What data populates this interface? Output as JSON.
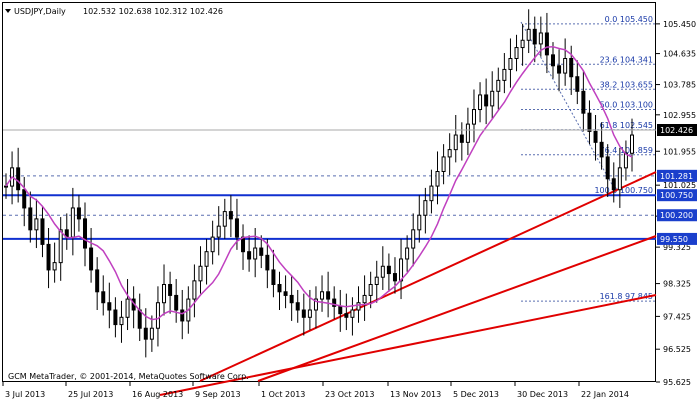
{
  "header": {
    "symbol_label": "USDJPY,Daily",
    "ohlc": "102.532 102.638 102.312 102.426"
  },
  "footer": {
    "copyright": "GCM MetaTrader, © 2001-2014, MetaQuotes Software Corp."
  },
  "colors": {
    "candle": "#000000",
    "ma": "#c040c0",
    "trendline": "#e00000",
    "hline": "#1030d0",
    "fib": "#5a6fb0",
    "label_bg": "#1a3fcc",
    "price_bg": "#000000"
  },
  "chart_data": {
    "type": "candlestick",
    "title": "USDJPY,Daily",
    "ylim": [
      95.625,
      106.05
    ],
    "x_tick_labels": [
      "3 Jul 2013",
      "25 Jul 2013",
      "16 Aug 2013",
      "9 Sep 2013",
      "1 Oct 2013",
      "23 Oct 2013",
      "13 Nov 2013",
      "5 Dec 2013",
      "30 Dec 2013",
      "22 Jan 2014"
    ],
    "y_tick_labels": [
      "105.450",
      "104.635",
      "103.785",
      "102.955",
      "101.955",
      "101.025",
      "100.175",
      "99.325",
      "98.325",
      "97.425",
      "96.525",
      "95.625"
    ],
    "current_price": "102.426",
    "horizontal_lines": [
      {
        "label": "101.281",
        "value": 101.281
      },
      {
        "label": "100.750",
        "value": 100.75
      },
      {
        "label": "100.200",
        "value": 100.2
      },
      {
        "label": "99.550",
        "value": 99.55
      }
    ],
    "fib_levels": [
      {
        "label": "0.0 105.450",
        "value": 105.45
      },
      {
        "label": "23.6 104.341",
        "value": 104.341
      },
      {
        "label": "38.2 103.655",
        "value": 103.655
      },
      {
        "label": "50.0 103.100",
        "value": 103.1
      },
      {
        "label": "61.8 102.545",
        "value": 102.545
      },
      {
        "label": "76.4 101.859",
        "value": 101.859
      },
      {
        "label": "100.0 100.750",
        "value": 100.75
      },
      {
        "label": "161.8 97.845",
        "value": 97.845
      }
    ],
    "candles_close_approx": [
      101.0,
      101.5,
      100.9,
      100.4,
      99.8,
      100.1,
      99.4,
      98.7,
      98.9,
      99.8,
      99.6,
      100.4,
      100.1,
      99.3,
      98.7,
      98.1,
      97.8,
      97.6,
      97.2,
      97.4,
      97.9,
      97.6,
      97.1,
      96.8,
      97.1,
      97.8,
      98.3,
      98.0,
      97.6,
      97.3,
      97.9,
      98.4,
      98.8,
      99.2,
      99.6,
      99.9,
      100.3,
      100.1,
      99.6,
      99.2,
      99.0,
      99.3,
      99.1,
      98.7,
      98.3,
      98.1,
      98.0,
      97.8,
      97.6,
      97.4,
      97.6,
      97.9,
      98.1,
      97.9,
      97.7,
      97.5,
      97.4,
      97.6,
      97.8,
      98.0,
      98.3,
      98.5,
      98.8,
      98.6,
      98.4,
      99.0,
      99.3,
      99.8,
      100.2,
      100.6,
      101.0,
      101.4,
      101.8,
      102.0,
      102.4,
      102.2,
      102.7,
      103.1,
      103.5,
      103.2,
      103.6,
      103.9,
      104.2,
      104.5,
      104.8,
      105.0,
      105.3,
      104.9,
      105.2,
      104.6,
      104.3,
      104.1,
      104.5,
      104.0,
      103.6,
      103.0,
      102.5,
      102.2,
      101.8,
      101.2,
      100.9,
      101.5,
      101.9,
      102.4
    ]
  }
}
